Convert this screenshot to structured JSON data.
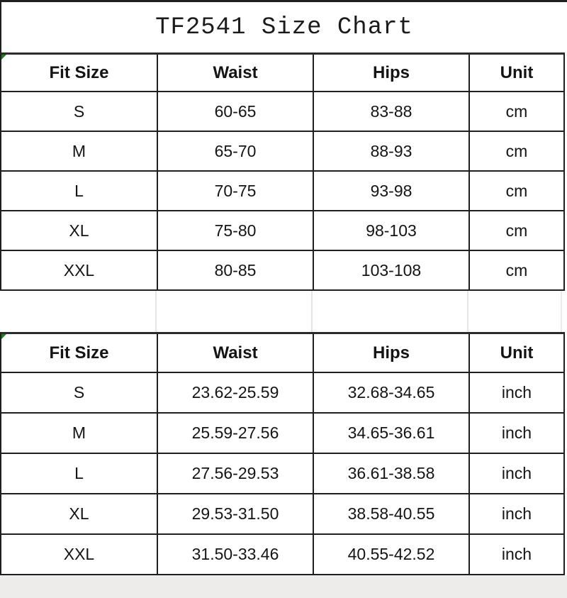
{
  "title": "TF2541 Size Chart",
  "tables": [
    {
      "unit": "cm",
      "headers": [
        "Fit Size",
        "Waist",
        "Hips",
        "Unit"
      ],
      "rows": [
        [
          "S",
          "60-65",
          "83-88",
          "cm"
        ],
        [
          "M",
          "65-70",
          "88-93",
          "cm"
        ],
        [
          "L",
          "70-75",
          "93-98",
          "cm"
        ],
        [
          "XL",
          "75-80",
          "98-103",
          "cm"
        ],
        [
          "XXL",
          "80-85",
          "103-108",
          "cm"
        ]
      ]
    },
    {
      "unit": "inch",
      "headers": [
        "Fit Size",
        "Waist",
        "Hips",
        "Unit"
      ],
      "rows": [
        [
          "S",
          "23.62-25.59",
          "32.68-34.65",
          "inch"
        ],
        [
          "M",
          "25.59-27.56",
          "34.65-36.61",
          "inch"
        ],
        [
          "L",
          "27.56-29.53",
          "36.61-38.58",
          "inch"
        ],
        [
          "XL",
          "29.53-31.50",
          "38.58-40.55",
          "inch"
        ],
        [
          "XXL",
          "31.50-33.46",
          "40.55-42.52",
          "inch"
        ]
      ]
    }
  ],
  "colors": {
    "table_border": "#1f1f1f",
    "text": "#141414",
    "corner_marker_green": "#1e7d1e",
    "bottom_strip_gray": "#edecea",
    "gap_gridline_gray": "#e5e5e3",
    "background": "#ffffff"
  }
}
